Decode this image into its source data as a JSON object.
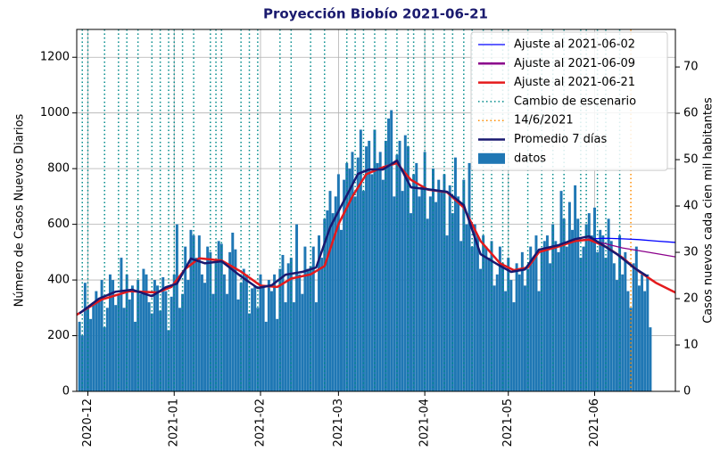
{
  "chart_data": {
    "type": "combo",
    "title": "Proyección Biobío 2021-06-21",
    "ylabel": "Número de Casos Nuevos Diarios",
    "y2label": "Casos nuevos cada cien mil habitantes",
    "xlim": [
      -4,
      211
    ],
    "xticks": [
      {
        "value": 0,
        "label": "2020-12"
      },
      {
        "value": 31,
        "label": "2021-01"
      },
      {
        "value": 62,
        "label": "2021-02"
      },
      {
        "value": 90,
        "label": "2021-03"
      },
      {
        "value": 121,
        "label": "2021-04"
      },
      {
        "value": 151,
        "label": "2021-05"
      },
      {
        "value": 182,
        "label": "2021-06"
      }
    ],
    "ylim": [
      0,
      1300
    ],
    "yticks": [
      0,
      200,
      400,
      600,
      800,
      1000,
      1200
    ],
    "y2lim": [
      0,
      78.1
    ],
    "y2ticks": [
      0,
      10,
      20,
      30,
      40,
      50,
      60,
      70
    ],
    "grid": true,
    "legend": "upper right",
    "series": [
      {
        "name": "Ajuste al 2021-06-02",
        "kind": "line",
        "color": "#0000ff",
        "x": [
          175,
          180,
          186,
          192,
          198,
          204,
          211
        ],
        "values": [
          540,
          548,
          550,
          548,
          545,
          540,
          535
        ]
      },
      {
        "name": "Ajuste al 2021-06-09",
        "kind": "line",
        "color": "#8b008b",
        "x": [
          175,
          180,
          186,
          192,
          198,
          204,
          211
        ],
        "values": [
          540,
          545,
          530,
          515,
          505,
          495,
          483
        ]
      },
      {
        "name": "Ajuste al 2021-06-21",
        "kind": "line",
        "color": "#e41a1c",
        "x": [
          -4,
          5,
          15,
          25,
          30,
          35,
          40,
          48,
          55,
          62,
          68,
          73,
          80,
          85,
          90,
          95,
          100,
          106,
          111,
          116,
          122,
          129,
          135,
          141,
          148,
          153,
          158,
          162,
          169,
          175,
          180,
          186,
          192,
          198,
          204,
          211
        ],
        "values": [
          275,
          330,
          360,
          355,
          375,
          440,
          478,
          470,
          430,
          380,
          375,
          405,
          420,
          450,
          600,
          700,
          780,
          805,
          820,
          760,
          725,
          715,
          660,
          540,
          460,
          435,
          445,
          500,
          520,
          540,
          545,
          520,
          480,
          430,
          390,
          355
        ]
      },
      {
        "name": "Cambio de escenario",
        "kind": "vline",
        "color": "#008b8b",
        "x": [
          -2,
          0,
          6,
          11,
          14,
          18,
          23,
          26,
          29,
          31,
          34,
          38,
          44,
          46,
          48,
          55,
          58,
          61,
          69,
          73,
          80,
          85,
          93,
          96,
          99,
          103,
          107,
          111,
          115,
          117,
          121,
          124,
          128,
          131,
          135,
          138,
          142,
          145,
          149,
          151,
          158,
          163,
          167,
          171,
          177,
          179,
          183,
          186,
          191
        ]
      },
      {
        "name": "14/6/2021",
        "kind": "vline",
        "color": "#ff8c00",
        "x": [
          195
        ]
      },
      {
        "name": "Promedio 7 días",
        "kind": "line",
        "color": "#191970",
        "x": [
          -3,
          4,
          10,
          16,
          23,
          28,
          32,
          37,
          42,
          48,
          55,
          61,
          66,
          71,
          77,
          82,
          87,
          92,
          97,
          101,
          106,
          111,
          116,
          122,
          129,
          135,
          141,
          148,
          152,
          157,
          162,
          169,
          175,
          180,
          185,
          190,
          196,
          201
        ],
        "values": [
          280,
          333,
          358,
          365,
          342,
          374,
          387,
          477,
          460,
          467,
          413,
          371,
          381,
          419,
          429,
          445,
          589,
          685,
          781,
          797,
          797,
          829,
          733,
          726,
          717,
          669,
          493,
          451,
          429,
          438,
          509,
          525,
          547,
          557,
          525,
          493,
          445,
          413
        ]
      },
      {
        "name": "datos",
        "kind": "bar",
        "color": "#1f77b4",
        "x": [
          -3,
          -2,
          -1,
          0,
          1,
          2,
          3,
          4,
          5,
          6,
          7,
          8,
          9,
          10,
          11,
          12,
          13,
          14,
          15,
          16,
          17,
          18,
          19,
          20,
          21,
          22,
          23,
          24,
          25,
          26,
          27,
          28,
          29,
          30,
          31,
          32,
          33,
          34,
          35,
          36,
          37,
          38,
          39,
          40,
          41,
          42,
          43,
          44,
          45,
          46,
          47,
          48,
          49,
          50,
          51,
          52,
          53,
          54,
          55,
          56,
          57,
          58,
          59,
          60,
          61,
          62,
          63,
          64,
          65,
          66,
          67,
          68,
          69,
          70,
          71,
          72,
          73,
          74,
          75,
          76,
          77,
          78,
          79,
          80,
          81,
          82,
          83,
          84,
          85,
          86,
          87,
          88,
          89,
          90,
          91,
          92,
          93,
          94,
          95,
          96,
          97,
          98,
          99,
          100,
          101,
          102,
          103,
          104,
          105,
          106,
          107,
          108,
          109,
          110,
          111,
          112,
          113,
          114,
          115,
          116,
          117,
          118,
          119,
          120,
          121,
          122,
          123,
          124,
          125,
          126,
          127,
          128,
          129,
          130,
          131,
          132,
          133,
          134,
          135,
          136,
          137,
          138,
          139,
          140,
          141,
          142,
          143,
          144,
          145,
          146,
          147,
          148,
          149,
          150,
          151,
          152,
          153,
          154,
          155,
          156,
          157,
          158,
          159,
          160,
          161,
          162,
          163,
          164,
          165,
          166,
          167,
          168,
          169,
          170,
          171,
          172,
          173,
          174,
          175,
          176,
          177,
          178,
          179,
          180,
          181,
          182,
          183,
          184,
          185,
          186,
          187,
          188,
          189,
          190,
          191,
          192,
          193,
          194,
          195,
          196,
          197,
          198,
          199,
          200,
          201,
          202
        ],
        "values": [
          250,
          200,
          390,
          300,
          260,
          320,
          360,
          330,
          400,
          230,
          300,
          420,
          400,
          310,
          350,
          480,
          300,
          420,
          330,
          380,
          250,
          400,
          350,
          440,
          420,
          320,
          280,
          400,
          380,
          290,
          410,
          360,
          220,
          340,
          420,
          600,
          300,
          350,
          520,
          400,
          580,
          560,
          480,
          560,
          420,
          390,
          520,
          500,
          350,
          470,
          540,
          530,
          420,
          350,
          500,
          570,
          510,
          330,
          390,
          440,
          420,
          280,
          370,
          380,
          300,
          420,
          380,
          250,
          400,
          360,
          420,
          260,
          440,
          490,
          320,
          460,
          480,
          320,
          600,
          420,
          350,
          520,
          440,
          450,
          520,
          320,
          560,
          480,
          620,
          650,
          720,
          640,
          700,
          780,
          580,
          760,
          820,
          800,
          860,
          700,
          840,
          940,
          720,
          880,
          900,
          780,
          940,
          820,
          860,
          760,
          900,
          980,
          1010,
          700,
          850,
          900,
          720,
          920,
          880,
          640,
          780,
          820,
          700,
          740,
          860,
          620,
          700,
          800,
          680,
          760,
          720,
          780,
          560,
          740,
          640,
          840,
          700,
          540,
          760,
          600,
          820,
          520,
          600,
          560,
          440,
          560,
          520,
          480,
          540,
          380,
          420,
          520,
          460,
          360,
          480,
          400,
          320,
          460,
          420,
          500,
          380,
          440,
          520,
          480,
          560,
          360,
          500,
          540,
          560,
          460,
          600,
          540,
          500,
          720,
          620,
          520,
          680,
          580,
          740,
          620,
          480,
          520,
          600,
          640,
          560,
          660,
          500,
          580,
          560,
          480,
          620,
          540,
          460,
          400,
          560,
          420,
          500,
          360,
          300,
          460,
          520,
          380,
          420,
          360,
          420,
          230
        ]
      }
    ]
  }
}
